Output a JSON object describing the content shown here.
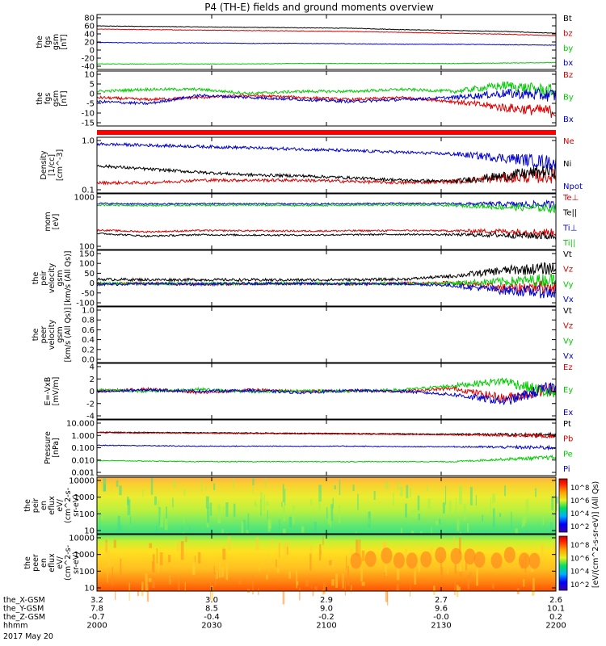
{
  "title": "P4 (TH-E) fields and ground moments overview",
  "footer": {
    "rows": [
      {
        "label": "the_X-GSM",
        "values": [
          "3.2",
          "3.0",
          "2.9",
          "2.7",
          "2.6"
        ]
      },
      {
        "label": "the_Y-GSM",
        "values": [
          "7.8",
          "8.5",
          "9.0",
          "9.6",
          "10.1"
        ]
      },
      {
        "label": "the_Z-GSM",
        "values": [
          "-0.7",
          "-0.4",
          "-0.2",
          "-0.0",
          "0.2"
        ]
      },
      {
        "label": "hhmm",
        "values": [
          "2000",
          "2030",
          "2100",
          "2130",
          "2200"
        ]
      }
    ],
    "date": "2017 May 20"
  },
  "colorbar": {
    "label": "[eV/(cm^2-s-sr-eV)] (All Qs)",
    "ticks_top": [
      "10^8",
      "10^6",
      "10^4",
      "10^2"
    ],
    "ticks_bottom": [
      "10^8",
      "10^6",
      "10^4",
      "10^2"
    ]
  },
  "colors": {
    "black": "#000000",
    "red": "#dd0000",
    "green": "#00cc00",
    "blue": "#0000cc"
  },
  "chart_data": [
    {
      "type": "line",
      "id": "fgs_gsm",
      "ylabel": [
        "the",
        "fgs",
        "gsm",
        "[nT]"
      ],
      "ylim": [
        -40,
        80
      ],
      "yticks": [
        "80",
        "60",
        "40",
        "20",
        "0",
        "-20",
        "-40"
      ],
      "series": [
        {
          "name": "Bt",
          "color": "#000000",
          "values": [
            55,
            54,
            53,
            52,
            51,
            50,
            47,
            45,
            43,
            39
          ]
        },
        {
          "name": "bz",
          "color": "#dd0000",
          "values": [
            48,
            47,
            46,
            45,
            44,
            43,
            41,
            39,
            37,
            34
          ]
        },
        {
          "name": "by",
          "color": "#00cc00",
          "values": [
            -28,
            -28,
            -28,
            -28,
            -27,
            -27,
            -27,
            -27,
            -26,
            -25
          ]
        },
        {
          "name": "bx",
          "color": "#0000cc",
          "values": [
            19,
            18,
            18,
            17,
            17,
            16,
            15,
            15,
            14,
            13
          ]
        }
      ]
    },
    {
      "type": "line",
      "id": "fgs_gsm_detrended",
      "ylabel": [
        "the",
        "fgs",
        "gsm",
        "[nT]"
      ],
      "ylim": [
        -17,
        10
      ],
      "yticks": [
        "10",
        "5",
        "0",
        "-5",
        "-10",
        "-15"
      ],
      "series": [
        {
          "name": "Bz",
          "color": "#dd0000",
          "values": [
            -3,
            -4,
            -3,
            -2,
            -3,
            -4,
            -3,
            -5,
            -8,
            -10
          ]
        },
        {
          "name": "By",
          "color": "#00cc00",
          "values": [
            0,
            1,
            1,
            -1,
            0,
            0,
            1,
            0,
            3,
            0
          ]
        },
        {
          "name": "Bx",
          "color": "#0000cc",
          "values": [
            -5,
            -6,
            -2,
            -3,
            -4,
            -5,
            -4,
            -3,
            -1,
            -2
          ]
        }
      ]
    },
    {
      "type": "line",
      "id": "density",
      "log": true,
      "ylabel": [
        "Density",
        "[1/cc]",
        "[cm^-3]"
      ],
      "ylim": [
        0.1,
        1.3
      ],
      "yticks": [
        "1.0",
        "0.1"
      ],
      "series": [
        {
          "name": "Ne",
          "color": "#dd0000",
          "values": [
            0.16,
            0.16,
            0.18,
            0.18,
            0.18,
            0.17,
            0.16,
            0.17,
            0.2,
            0.22
          ]
        },
        {
          "name": "Ni",
          "color": "#000000",
          "values": [
            0.35,
            0.3,
            0.26,
            0.23,
            0.22,
            0.2,
            0.18,
            0.17,
            0.22,
            0.28
          ]
        },
        {
          "name": "Npot",
          "color": "#0000cc",
          "values": [
            0.95,
            0.9,
            0.85,
            0.8,
            0.75,
            0.7,
            0.65,
            0.6,
            0.5,
            0.4
          ]
        }
      ]
    },
    {
      "type": "line",
      "id": "temperature",
      "log": true,
      "ylabel": [
        "mom",
        "[eV]"
      ],
      "ylim": [
        100,
        10000
      ],
      "yticks": [
        "1000",
        "100"
      ],
      "series": [
        {
          "name": "Te⊥",
          "color": "#dd0000",
          "values": [
            500,
            430,
            480,
            470,
            460,
            470,
            480,
            470,
            450,
            400
          ]
        },
        {
          "name": "Te||",
          "color": "#000000",
          "values": [
            380,
            300,
            340,
            330,
            330,
            340,
            350,
            340,
            330,
            300
          ]
        },
        {
          "name": "Ti⊥",
          "color": "#0000cc",
          "values": [
            4500,
            4300,
            4400,
            4400,
            4300,
            4400,
            4500,
            4400,
            4200,
            4000
          ]
        },
        {
          "name": "Ti||",
          "color": "#00cc00",
          "values": [
            4000,
            3800,
            3900,
            3900,
            3800,
            3900,
            4000,
            3800,
            3300,
            3000
          ]
        }
      ]
    },
    {
      "type": "line",
      "id": "peir_velocity",
      "ylabel": [
        "the",
        "peir",
        "velocity",
        "gsm",
        "[km/s (All Qs)]"
      ],
      "ylim": [
        -100,
        150
      ],
      "yticks": [
        "150",
        "100",
        "50",
        "0",
        "-50",
        "-100"
      ],
      "series": [
        {
          "name": "Vt",
          "color": "#000000",
          "values": [
            20,
            18,
            18,
            17,
            17,
            18,
            20,
            35,
            60,
            70
          ]
        },
        {
          "name": "Vz",
          "color": "#dd0000",
          "values": [
            0,
            2,
            -2,
            1,
            0,
            -1,
            2,
            5,
            -20,
            -10
          ]
        },
        {
          "name": "Vy",
          "color": "#00cc00",
          "values": [
            3,
            0,
            1,
            0,
            2,
            1,
            0,
            3,
            10,
            20
          ]
        },
        {
          "name": "Vx",
          "color": "#0000cc",
          "values": [
            -3,
            0,
            -2,
            1,
            0,
            -1,
            0,
            -8,
            -30,
            -40
          ]
        }
      ]
    },
    {
      "type": "line",
      "id": "peer_velocity",
      "ylabel": [
        "the",
        "peer",
        "velocity",
        "gsm",
        "[km/s (All Qs)]"
      ],
      "ylim": [
        0,
        1
      ],
      "yticks": [
        "1.0",
        "0.8",
        "0.6",
        "0.4",
        "0.2",
        "0.0"
      ],
      "series": [
        {
          "name": "Vt",
          "color": "#000000",
          "values": []
        },
        {
          "name": "Vz",
          "color": "#dd0000",
          "values": []
        },
        {
          "name": "Vy",
          "color": "#00cc00",
          "values": []
        },
        {
          "name": "Vx",
          "color": "#0000cc",
          "values": []
        }
      ]
    },
    {
      "type": "line",
      "id": "efield",
      "ylabel": [
        "E=-VxB",
        "[mV/m]"
      ],
      "ylim": [
        -4,
        4
      ],
      "yticks": [
        "4",
        "2",
        "0",
        "-2",
        "-4"
      ],
      "series": [
        {
          "name": "Ez",
          "color": "#dd0000",
          "values": [
            0,
            0.3,
            -0.2,
            0.2,
            0,
            0.1,
            0,
            0.4,
            -1.0,
            0.5
          ]
        },
        {
          "name": "Ey",
          "color": "#00cc00",
          "values": [
            0.2,
            0,
            0.3,
            -0.1,
            0.1,
            0,
            0.2,
            0.8,
            1.5,
            -0.5
          ]
        },
        {
          "name": "Ex",
          "color": "#0000cc",
          "values": [
            -0.1,
            0.2,
            0,
            0.1,
            -0.2,
            0.1,
            0,
            -0.5,
            -1.5,
            0.8
          ]
        }
      ]
    },
    {
      "type": "line",
      "id": "pressure",
      "log": true,
      "ylabel": [
        "Pressure",
        "[nPa]"
      ],
      "ylim": [
        0.001,
        10
      ],
      "yticks": [
        "10.000",
        "1.000",
        "0.100",
        "0.010",
        "0.001"
      ],
      "series": [
        {
          "name": "Pt",
          "color": "#000000",
          "values": [
            1.3,
            1.25,
            1.2,
            1.15,
            1.1,
            1.05,
            1.0,
            0.95,
            0.9,
            0.8
          ]
        },
        {
          "name": "Pb",
          "color": "#dd0000",
          "values": [
            1.2,
            1.15,
            1.1,
            1.05,
            1.0,
            0.95,
            0.9,
            0.85,
            0.8,
            0.7
          ]
        },
        {
          "name": "Pe",
          "color": "#00cc00",
          "values": [
            0.012,
            0.011,
            0.01,
            0.01,
            0.01,
            0.01,
            0.01,
            0.01,
            0.015,
            0.02
          ]
        },
        {
          "name": "Pi",
          "color": "#0000cc",
          "values": [
            0.15,
            0.14,
            0.13,
            0.13,
            0.13,
            0.13,
            0.12,
            0.12,
            0.11,
            0.1
          ]
        }
      ]
    },
    {
      "type": "heatmap",
      "id": "peir_eflux",
      "ylabel": [
        "the",
        "peir",
        "en",
        "eflux",
        "eV/",
        "(cm^2-s-",
        "sr-eV)"
      ],
      "ylim": [
        7,
        20000
      ],
      "yticks": [
        "10000",
        "1000",
        "100",
        "10"
      ]
    },
    {
      "type": "heatmap",
      "id": "peer_eflux",
      "ylabel": [
        "the",
        "peer",
        "en",
        "eflux",
        "eV/",
        "(cm^2-s-",
        "sr-eV)"
      ],
      "ylim": [
        7,
        20000
      ],
      "yticks": [
        "10000",
        "1000",
        "100",
        "10"
      ]
    }
  ]
}
